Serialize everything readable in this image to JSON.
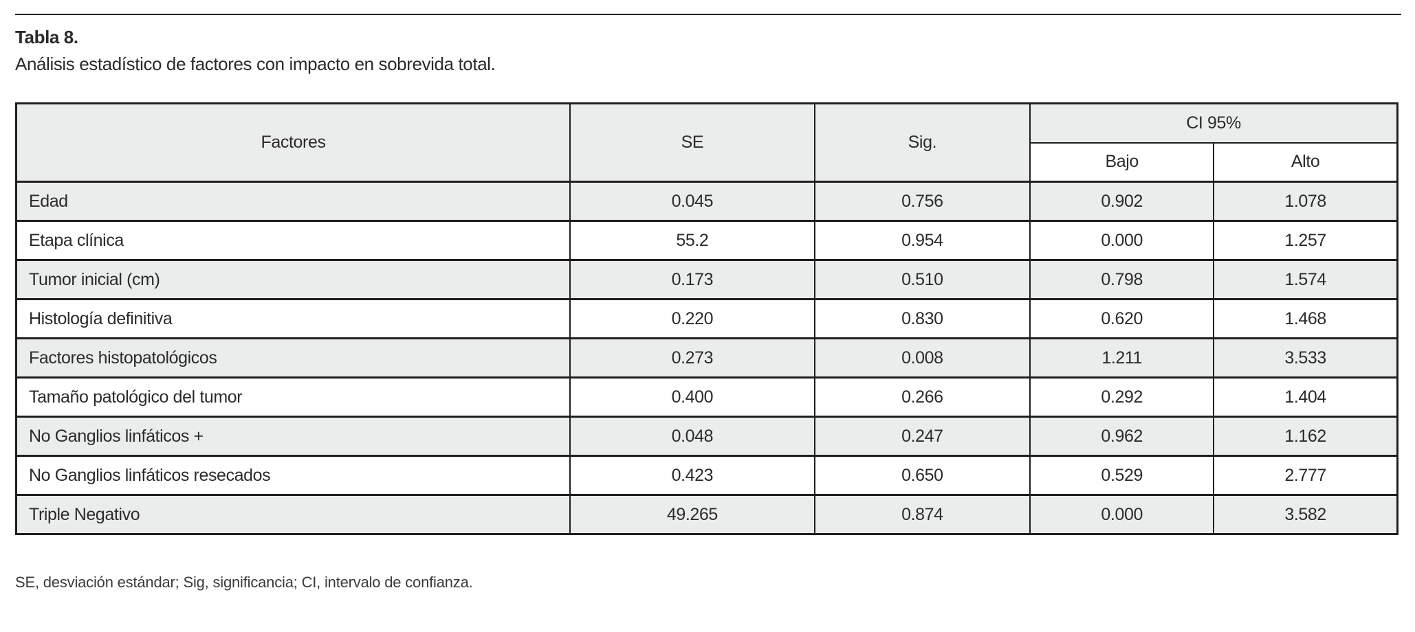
{
  "doc": {
    "title_label": "Tabla 8.",
    "subtitle": "Análisis estadístico de factores con impacto en sobrevida total.",
    "footnote": "SE, desviación estándar; Sig, significancia; CI, intervalo de confianza."
  },
  "table": {
    "headers": {
      "factores": "Factores",
      "se": "SE",
      "sig": "Sig.",
      "ci": "CI 95%",
      "bajo": "Bajo",
      "alto": "Alto"
    },
    "rows": [
      {
        "factor": "Edad",
        "se": "0.045",
        "sig": "0.756",
        "bajo": "0.902",
        "alto": "1.078"
      },
      {
        "factor": "Etapa clínica",
        "se": "55.2",
        "sig": "0.954",
        "bajo": "0.000",
        "alto": "1.257"
      },
      {
        "factor": "Tumor inicial (cm)",
        "se": "0.173",
        "sig": "0.510",
        "bajo": "0.798",
        "alto": "1.574"
      },
      {
        "factor": "Histología definitiva",
        "se": "0.220",
        "sig": "0.830",
        "bajo": "0.620",
        "alto": "1.468"
      },
      {
        "factor": "Factores histopatológicos",
        "se": "0.273",
        "sig": "0.008",
        "bajo": "1.211",
        "alto": "3.533"
      },
      {
        "factor": "Tamaño patológico del tumor",
        "se": "0.400",
        "sig": "0.266",
        "bajo": "0.292",
        "alto": "1.404"
      },
      {
        "factor": "No Ganglios linfáticos +",
        "se": "0.048",
        "sig": "0.247",
        "bajo": "0.962",
        "alto": "1.162"
      },
      {
        "factor": "No Ganglios linfáticos resecados",
        "se": "0.423",
        "sig": "0.650",
        "bajo": "0.529",
        "alto": "2.777"
      },
      {
        "factor": "Triple Negativo",
        "se": "49.265",
        "sig": "0.874",
        "bajo": "0.000",
        "alto": "3.582"
      }
    ]
  },
  "colors": {
    "row_shade": "#ebedec",
    "border": "#1e1e1e",
    "text": "#2b2b2b"
  }
}
